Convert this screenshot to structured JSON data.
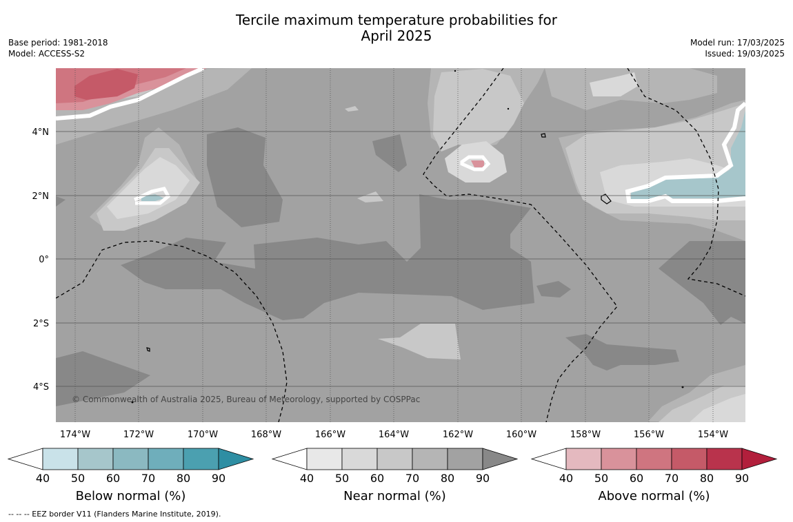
{
  "title_line1": "Tercile maximum temperature probabilities for",
  "title_line2": "April 2025",
  "meta_left": [
    "Base period: 1981-2018",
    "Model: ACCESS-S2"
  ],
  "meta_right": [
    "Model run: 17/03/2025",
    "Issued: 19/03/2025"
  ],
  "x_ticks": [
    "174°W",
    "172°W",
    "170°W",
    "168°W",
    "166°W",
    "164°W",
    "162°W",
    "160°W",
    "158°W",
    "156°W",
    "154°W"
  ],
  "y_ticks": [
    "4°N",
    "2°N",
    "0°",
    "2°S",
    "4°S"
  ],
  "copyright": "© Commonwealth of Australia 2025, Bureau of Meteorology, supported by COSPPac",
  "footnote": "--  --  -- EEZ border V11 (Flanders Marine Institute, 2019).",
  "colorbars": [
    {
      "title": "Below normal (%)",
      "ticks": [
        "40",
        "50",
        "60",
        "70",
        "80",
        "90"
      ],
      "colors": [
        "#ffffff",
        "#c9e2e9",
        "#a6c6cb",
        "#8bb9c1",
        "#6faebb",
        "#4ba0b0",
        "#2e8ea3"
      ]
    },
    {
      "title": "Near normal (%)",
      "ticks": [
        "40",
        "50",
        "60",
        "70",
        "80",
        "90"
      ],
      "colors": [
        "#ffffff",
        "#e8e8e8",
        "#d9d9d9",
        "#c8c8c8",
        "#b5b5b5",
        "#a2a2a2",
        "#888888"
      ]
    },
    {
      "title": "Above normal (%)",
      "ticks": [
        "40",
        "50",
        "60",
        "70",
        "80",
        "90"
      ],
      "colors": [
        "#ffffff",
        "#e4b9bf",
        "#d9929b",
        "#cf7580",
        "#c55a68",
        "#b9334c",
        "#b21f3c"
      ]
    }
  ],
  "colors": {
    "near_60": "#c8c8c8",
    "near_70": "#b5b5b5",
    "near_80": "#a2a2a2",
    "near_90": "#888888",
    "near_50": "#d9d9d9",
    "above_50": "#d9929b",
    "above_60": "#cf7580",
    "above_70": "#c55a68",
    "below_50": "#a6c6cb"
  }
}
